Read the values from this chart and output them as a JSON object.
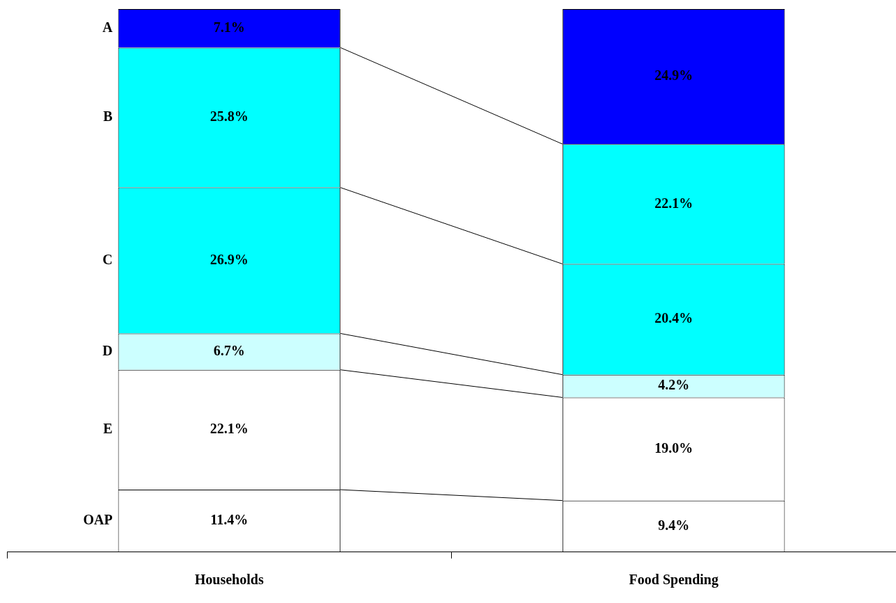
{
  "chart_data": {
    "type": "bar",
    "stacked": true,
    "legend": false,
    "grid": false,
    "categories": [
      "Households",
      "Food Spending"
    ],
    "series": [
      {
        "name": "OAP",
        "color": "#ffffff",
        "values": [
          11.4,
          9.4
        ],
        "value_labels": [
          "11.4%",
          "9.4%"
        ]
      },
      {
        "name": "E",
        "color": "#ffffff",
        "values": [
          22.1,
          19.0
        ],
        "value_labels": [
          "22.1%",
          "19.0%"
        ]
      },
      {
        "name": "D",
        "color": "#ccffff",
        "values": [
          6.7,
          4.2
        ],
        "value_labels": [
          "6.7%",
          "4.2%"
        ]
      },
      {
        "name": "C",
        "color": "#00ffff",
        "values": [
          26.9,
          20.4
        ],
        "value_labels": [
          "26.9%",
          "20.4%"
        ]
      },
      {
        "name": "B",
        "color": "#00ffff",
        "values": [
          25.8,
          22.1
        ],
        "value_labels": [
          "25.8%",
          "22.1%"
        ]
      },
      {
        "name": "A",
        "color": "#0000ff",
        "values": [
          7.1,
          24.9
        ],
        "value_labels": [
          "7.1%",
          "24.9%"
        ]
      }
    ]
  }
}
